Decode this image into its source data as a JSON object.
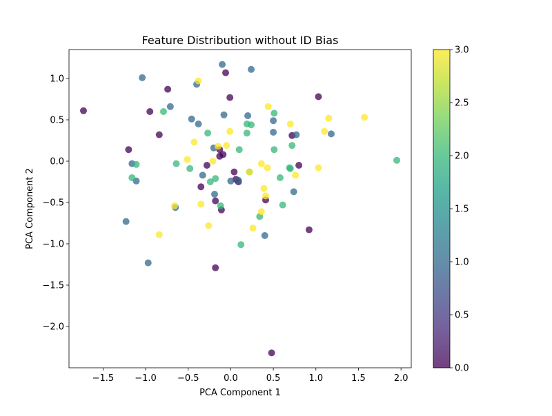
{
  "chart_data": {
    "type": "scatter",
    "title": "Feature Distribution without ID Bias",
    "xlabel": "PCA Component 1",
    "ylabel": "PCA Component 2",
    "xlim": [
      -1.9,
      2.12
    ],
    "ylim": [
      -2.5,
      1.35
    ],
    "xticks": [
      -1.5,
      -1.0,
      -0.5,
      0.0,
      0.5,
      1.0,
      1.5,
      2.0
    ],
    "xtick_labels": [
      "−1.5",
      "−1.0",
      "−0.5",
      "0.0",
      "0.5",
      "1.0",
      "1.5",
      "2.0"
    ],
    "yticks": [
      1.0,
      0.5,
      0.0,
      -0.5,
      -1.0,
      -1.5,
      -2.0
    ],
    "ytick_labels": [
      "1.0",
      "0.5",
      "0.0",
      "−0.5",
      "−1.0",
      "−1.5",
      "−2.0"
    ],
    "grid": false,
    "colormap": "viridis",
    "point_alpha": 0.75,
    "colorbar": {
      "range": [
        0.0,
        3.0
      ],
      "ticks": [
        0.0,
        0.5,
        1.0,
        1.5,
        2.0,
        2.5,
        3.0
      ],
      "tick_labels": [
        "0.0",
        "0.5",
        "1.0",
        "1.5",
        "2.0",
        "2.5",
        "3.0"
      ],
      "colors": [
        "#440154",
        "#482878",
        "#3e4989",
        "#31688e",
        "#26828e",
        "#1f9e89",
        "#35b779",
        "#6ece58",
        "#b5de2b",
        "#fde725"
      ]
    },
    "points": [
      {
        "x": -1.73,
        "y": 0.61,
        "c": 0
      },
      {
        "x": -0.95,
        "y": 0.6,
        "c": 0
      },
      {
        "x": -0.74,
        "y": 0.87,
        "c": 0
      },
      {
        "x": -0.84,
        "y": 0.32,
        "c": 0
      },
      {
        "x": -1.2,
        "y": 0.14,
        "c": 0
      },
      {
        "x": -0.06,
        "y": 1.07,
        "c": 0
      },
      {
        "x": -0.01,
        "y": 0.77,
        "c": 0
      },
      {
        "x": -0.13,
        "y": 0.14,
        "c": 0
      },
      {
        "x": -0.13,
        "y": 0.06,
        "c": 0
      },
      {
        "x": -0.09,
        "y": 0.08,
        "c": 0
      },
      {
        "x": -0.28,
        "y": -0.05,
        "c": 0
      },
      {
        "x": 0.04,
        "y": -0.13,
        "c": 0
      },
      {
        "x": 0.06,
        "y": -0.22,
        "c": 0
      },
      {
        "x": 0.09,
        "y": -0.25,
        "c": 0
      },
      {
        "x": -0.35,
        "y": -0.31,
        "c": 0
      },
      {
        "x": -0.18,
        "y": -0.48,
        "c": 0
      },
      {
        "x": -0.11,
        "y": -0.59,
        "c": 0
      },
      {
        "x": 0.41,
        "y": -0.47,
        "c": 0
      },
      {
        "x": 0.72,
        "y": 0.31,
        "c": 0
      },
      {
        "x": 1.03,
        "y": 0.78,
        "c": 0
      },
      {
        "x": 0.8,
        "y": -0.05,
        "c": 0
      },
      {
        "x": 0.92,
        "y": -0.83,
        "c": 0
      },
      {
        "x": -0.18,
        "y": -1.29,
        "c": 0
      },
      {
        "x": 0.48,
        "y": -2.32,
        "c": 0
      },
      {
        "x": -1.04,
        "y": 1.01,
        "c": 1
      },
      {
        "x": -0.1,
        "y": 1.17,
        "c": 1
      },
      {
        "x": 0.24,
        "y": 1.11,
        "c": 1
      },
      {
        "x": -0.4,
        "y": 0.93,
        "c": 1
      },
      {
        "x": -0.71,
        "y": 0.66,
        "c": 1
      },
      {
        "x": -0.46,
        "y": 0.51,
        "c": 1
      },
      {
        "x": -0.38,
        "y": 0.45,
        "c": 1
      },
      {
        "x": -0.08,
        "y": 0.56,
        "c": 1
      },
      {
        "x": 0.2,
        "y": 0.55,
        "c": 1
      },
      {
        "x": 0.5,
        "y": 0.49,
        "c": 1
      },
      {
        "x": 0.5,
        "y": 0.35,
        "c": 1
      },
      {
        "x": 0.77,
        "y": 0.32,
        "c": 1
      },
      {
        "x": 1.18,
        "y": 0.33,
        "c": 1
      },
      {
        "x": -0.2,
        "y": 0.16,
        "c": 1
      },
      {
        "x": -1.16,
        "y": -0.03,
        "c": 1
      },
      {
        "x": -1.11,
        "y": -0.24,
        "c": 1
      },
      {
        "x": -0.33,
        "y": -0.17,
        "c": 1
      },
      {
        "x": 0.0,
        "y": -0.24,
        "c": 1
      },
      {
        "x": 0.09,
        "y": -0.23,
        "c": 1
      },
      {
        "x": -0.19,
        "y": -0.4,
        "c": 1
      },
      {
        "x": 0.74,
        "y": -0.37,
        "c": 1
      },
      {
        "x": -0.65,
        "y": -0.56,
        "c": 1
      },
      {
        "x": -1.23,
        "y": -0.73,
        "c": 1
      },
      {
        "x": 0.4,
        "y": -0.9,
        "c": 1
      },
      {
        "x": -0.97,
        "y": -1.23,
        "c": 1
      },
      {
        "x": -0.79,
        "y": 0.6,
        "c": 2
      },
      {
        "x": 0.51,
        "y": 0.58,
        "c": 2
      },
      {
        "x": -0.27,
        "y": 0.34,
        "c": 2
      },
      {
        "x": 0.19,
        "y": 0.45,
        "c": 2
      },
      {
        "x": 0.24,
        "y": 0.44,
        "c": 2
      },
      {
        "x": 0.19,
        "y": 0.34,
        "c": 2
      },
      {
        "x": 0.1,
        "y": 0.14,
        "c": 2
      },
      {
        "x": 0.51,
        "y": 0.14,
        "c": 2
      },
      {
        "x": 0.72,
        "y": 0.19,
        "c": 2
      },
      {
        "x": -1.11,
        "y": -0.04,
        "c": 2
      },
      {
        "x": -0.64,
        "y": -0.03,
        "c": 2
      },
      {
        "x": -0.48,
        "y": -0.09,
        "c": 2
      },
      {
        "x": 0.22,
        "y": -0.13,
        "c": 2
      },
      {
        "x": 0.69,
        "y": -0.08,
        "c": 2
      },
      {
        "x": 0.7,
        "y": -0.09,
        "c": 2
      },
      {
        "x": -1.16,
        "y": -0.2,
        "c": 2
      },
      {
        "x": -0.24,
        "y": -0.25,
        "c": 2
      },
      {
        "x": -0.18,
        "y": -0.21,
        "c": 2
      },
      {
        "x": 0.58,
        "y": -0.2,
        "c": 2
      },
      {
        "x": -0.12,
        "y": -0.54,
        "c": 2
      },
      {
        "x": 0.61,
        "y": -0.53,
        "c": 2
      },
      {
        "x": 0.34,
        "y": -0.67,
        "c": 2
      },
      {
        "x": 0.12,
        "y": -1.01,
        "c": 2
      },
      {
        "x": 1.95,
        "y": 0.01,
        "c": 2
      },
      {
        "x": -0.38,
        "y": 0.97,
        "c": 3
      },
      {
        "x": 0.44,
        "y": 0.66,
        "c": 3
      },
      {
        "x": 0.7,
        "y": 0.45,
        "c": 3
      },
      {
        "x": 1.15,
        "y": 0.52,
        "c": 3
      },
      {
        "x": 1.57,
        "y": 0.53,
        "c": 3
      },
      {
        "x": 1.1,
        "y": 0.36,
        "c": 3
      },
      {
        "x": -0.01,
        "y": 0.36,
        "c": 3
      },
      {
        "x": -0.43,
        "y": 0.23,
        "c": 3
      },
      {
        "x": -0.05,
        "y": 0.19,
        "c": 3
      },
      {
        "x": -0.15,
        "y": 0.18,
        "c": 3
      },
      {
        "x": -0.51,
        "y": 0.02,
        "c": 3
      },
      {
        "x": -0.21,
        "y": 0.0,
        "c": 3
      },
      {
        "x": 0.36,
        "y": -0.03,
        "c": 3
      },
      {
        "x": 0.43,
        "y": -0.08,
        "c": 3
      },
      {
        "x": 1.03,
        "y": -0.08,
        "c": 3
      },
      {
        "x": 0.22,
        "y": -0.13,
        "c": 3
      },
      {
        "x": 0.76,
        "y": -0.17,
        "c": 3
      },
      {
        "x": 0.39,
        "y": -0.33,
        "c": 3
      },
      {
        "x": 0.41,
        "y": -0.42,
        "c": 3
      },
      {
        "x": -0.35,
        "y": -0.52,
        "c": 3
      },
      {
        "x": -0.66,
        "y": -0.54,
        "c": 3
      },
      {
        "x": 0.36,
        "y": -0.61,
        "c": 3
      },
      {
        "x": -0.26,
        "y": -0.78,
        "c": 3
      },
      {
        "x": 0.26,
        "y": -0.81,
        "c": 3
      },
      {
        "x": -0.84,
        "y": -0.89,
        "c": 3
      }
    ]
  }
}
